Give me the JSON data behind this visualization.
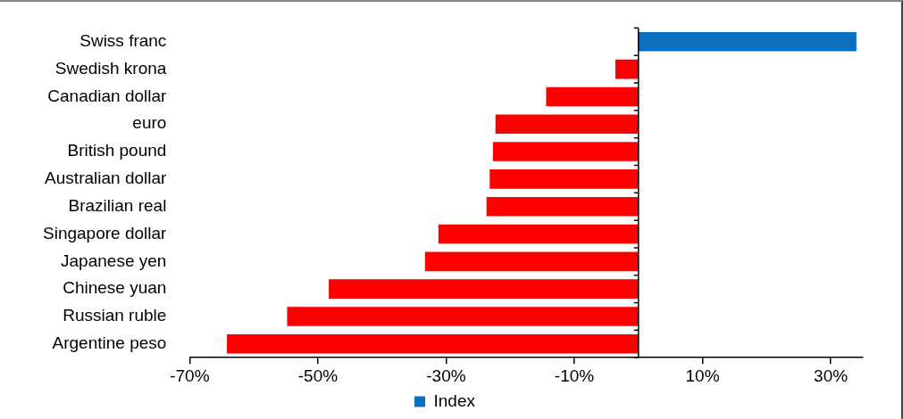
{
  "chart_data": {
    "type": "bar",
    "orientation": "horizontal",
    "categories": [
      "Swiss franc",
      "Swedish krona",
      "Canadian dollar",
      "euro",
      "British pound",
      "Australian dollar",
      "Brazilian real",
      "Singapore dollar",
      "Japanese yen",
      "Chinese yuan",
      "Russian ruble",
      "Argentine peso"
    ],
    "series": [
      {
        "name": "Index",
        "color": "#0a70c0",
        "colors": [
          "#0a70c0",
          "#ff0000",
          "#ff0000",
          "#ff0000",
          "#ff0000",
          "#ff0000",
          "#ff0000",
          "#ff0000",
          "#ff0000",
          "#ff0000",
          "#ff0000",
          "#ff0000"
        ],
        "values": [
          34,
          -3.6,
          -14.4,
          -22.3,
          -22.7,
          -23.2,
          -23.7,
          -31.2,
          -33.3,
          -48.3,
          -54.8,
          -64.2
        ]
      }
    ],
    "xlim": [
      -70,
      35
    ],
    "xticks": [
      {
        "value": -70,
        "label": "-70%"
      },
      {
        "value": -50,
        "label": "-50%"
      },
      {
        "value": -30,
        "label": "-30%"
      },
      {
        "value": -10,
        "label": "-10%"
      },
      {
        "value": 10,
        "label": "10%"
      },
      {
        "value": 30,
        "label": "30%"
      }
    ],
    "grid": false,
    "legend": "bottom"
  }
}
